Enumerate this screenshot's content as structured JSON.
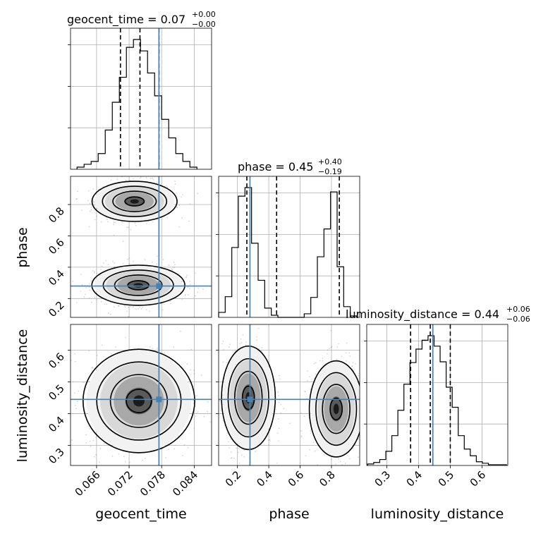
{
  "chart_data": {
    "type": "corner",
    "parameters": [
      "geocent_time",
      "phase",
      "luminosity_distance"
    ],
    "truths": {
      "geocent_time": 0.0775,
      "phase": 0.28,
      "luminosity_distance": 0.445
    },
    "ranges": {
      "geocent_time": [
        0.0612,
        0.0872
      ],
      "phase": [
        0.08,
        0.98
      ],
      "luminosity_distance": [
        0.237,
        0.681
      ]
    },
    "ticks": {
      "geocent_time": {
        "values": [
          0.066,
          0.072,
          0.078,
          0.084
        ],
        "labels": [
          "0.066",
          "0.072",
          "0.078",
          "0.084"
        ]
      },
      "phase": {
        "values": [
          0.2,
          0.4,
          0.6,
          0.8
        ],
        "labels": [
          "0.2",
          "0.4",
          "0.6",
          "0.8"
        ]
      },
      "luminosity_distance": {
        "values": [
          0.3,
          0.4,
          0.5,
          0.6
        ],
        "labels": [
          "0.3",
          "0.4",
          "0.5",
          "0.6"
        ]
      }
    },
    "titles": [
      {
        "param": "geocent_time",
        "text": "geocent_time = 0.07",
        "sup": "+0.00",
        "sub": "−0.00"
      },
      {
        "param": "phase",
        "text": "phase = 0.45",
        "sup": "+0.40",
        "sub": "−0.19"
      },
      {
        "param": "luminosity_distance",
        "text": "luminosity_distance = 0.44",
        "sup": "+0.06",
        "sub": "−0.06"
      }
    ],
    "quantiles": {
      "geocent_time": [
        0.0704,
        0.074,
        0.0775
      ],
      "phase": [
        0.26,
        0.45,
        0.85
      ],
      "luminosity_distance": [
        0.375,
        0.437,
        0.5
      ]
    },
    "histograms": {
      "geocent_time": {
        "edges": [
          0.0624,
          0.0637,
          0.065,
          0.0663,
          0.0676,
          0.0689,
          0.0702,
          0.0715,
          0.0728,
          0.0741,
          0.0754,
          0.0767,
          0.078,
          0.0793,
          0.0806,
          0.0819,
          0.0832,
          0.0845
        ],
        "counts": [
          3,
          7,
          11,
          22,
          55,
          94,
          129,
          171,
          182,
          166,
          135,
          103,
          70,
          44,
          22,
          11,
          3
        ]
      },
      "phase": {
        "edges": [
          0.08,
          0.122,
          0.164,
          0.206,
          0.248,
          0.29,
          0.332,
          0.374,
          0.416,
          0.458,
          0.5,
          0.542,
          0.584,
          0.626,
          0.668,
          0.71,
          0.752,
          0.794,
          0.836,
          0.878,
          0.92,
          0.962
        ],
        "counts": [
          7,
          29,
          98,
          170,
          182,
          104,
          52,
          13,
          3,
          0,
          0,
          0,
          0,
          5,
          28,
          85,
          124,
          176,
          71,
          15,
          2
        ]
      },
      "luminosity_distance": {
        "edges": [
          0.24,
          0.259,
          0.278,
          0.297,
          0.316,
          0.335,
          0.354,
          0.373,
          0.392,
          0.411,
          0.43,
          0.449,
          0.468,
          0.487,
          0.506,
          0.525,
          0.544,
          0.563,
          0.582,
          0.601,
          0.62,
          0.639,
          0.658,
          0.677
        ],
        "counts": [
          2,
          4,
          8,
          19,
          40,
          74,
          109,
          138,
          156,
          168,
          174,
          160,
          139,
          105,
          78,
          40,
          22,
          13,
          5,
          3,
          1,
          1,
          1
        ]
      }
    },
    "modes_2d": {
      "phase_vs_geocent_time": [
        {
          "x": 0.073,
          "y": 0.82,
          "sx": 0.0032,
          "sy": 0.055
        },
        {
          "x": 0.0737,
          "y": 0.285,
          "sx": 0.0035,
          "sy": 0.055
        }
      ],
      "luminosity_distance_vs_geocent_time": [
        {
          "x": 0.0738,
          "y": 0.44,
          "sx": 0.0042,
          "sy": 0.07
        }
      ],
      "luminosity_distance_vs_phase": [
        {
          "x": 0.27,
          "y": 0.45,
          "sx": 0.07,
          "sy": 0.07
        },
        {
          "x": 0.83,
          "y": 0.415,
          "sx": 0.07,
          "sy": 0.065
        }
      ]
    }
  }
}
